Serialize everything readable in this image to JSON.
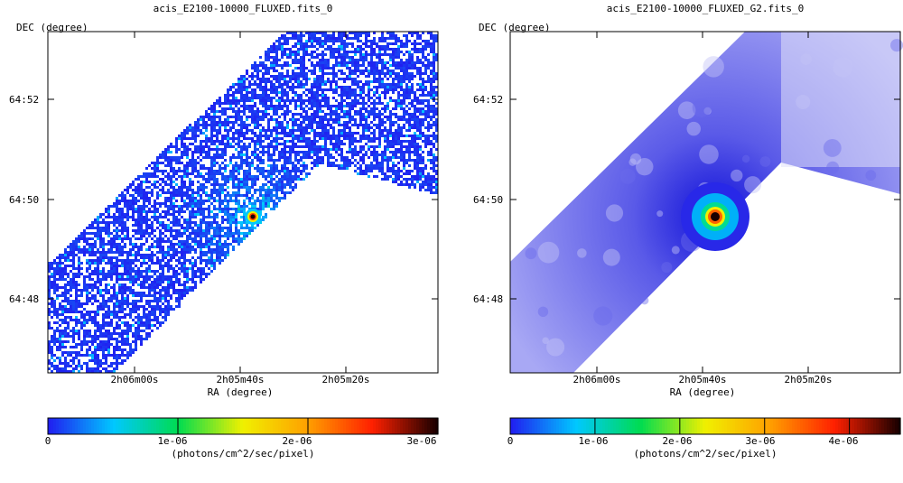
{
  "chart_data": [
    {
      "type": "heatmap",
      "title": "acis_E2100-10000_FLUXED.fits_0",
      "xlabel": "RA (degree)",
      "ylabel": "DEC (degree)",
      "x_ticks": [
        "2h06m00s",
        "2h05m40s",
        "2h05m20s"
      ],
      "y_ticks": [
        "64:52",
        "64:50",
        "64:48"
      ],
      "colorbar": {
        "ticks": [
          "0",
          "1e-06",
          "2e-06",
          "3e-06"
        ],
        "tick_values": [
          0,
          1e-06,
          2e-06,
          3e-06
        ],
        "range": [
          0,
          3e-06
        ],
        "label": "(photons/cm^2/sec/pixel)"
      },
      "style": "noisy-binned",
      "source": {
        "ra": "2h05m43s",
        "dec": "64:49.7"
      }
    },
    {
      "type": "heatmap",
      "title": "acis_E2100-10000_FLUXED_G2.fits_0",
      "xlabel": "RA (degree)",
      "ylabel": "DEC (degree)",
      "x_ticks": [
        "2h06m00s",
        "2h05m40s",
        "2h05m20s"
      ],
      "y_ticks": [
        "64:52",
        "64:50",
        "64:48"
      ],
      "colorbar": {
        "ticks": [
          "0",
          "1e-06",
          "2e-06",
          "3e-06",
          "4e-06"
        ],
        "tick_values": [
          0,
          1e-06,
          2e-06,
          3e-06,
          4e-06
        ],
        "range": [
          0,
          4.6e-06
        ],
        "label": "(photons/cm^2/sec/pixel)"
      },
      "style": "smoothed",
      "source": {
        "ra": "2h05m43s",
        "dec": "64:49.7"
      }
    }
  ],
  "colormap": [
    "#2020f0",
    "#00c8ff",
    "#00dc50",
    "#f0f000",
    "#ffa000",
    "#ff2000",
    "#1a0000"
  ]
}
